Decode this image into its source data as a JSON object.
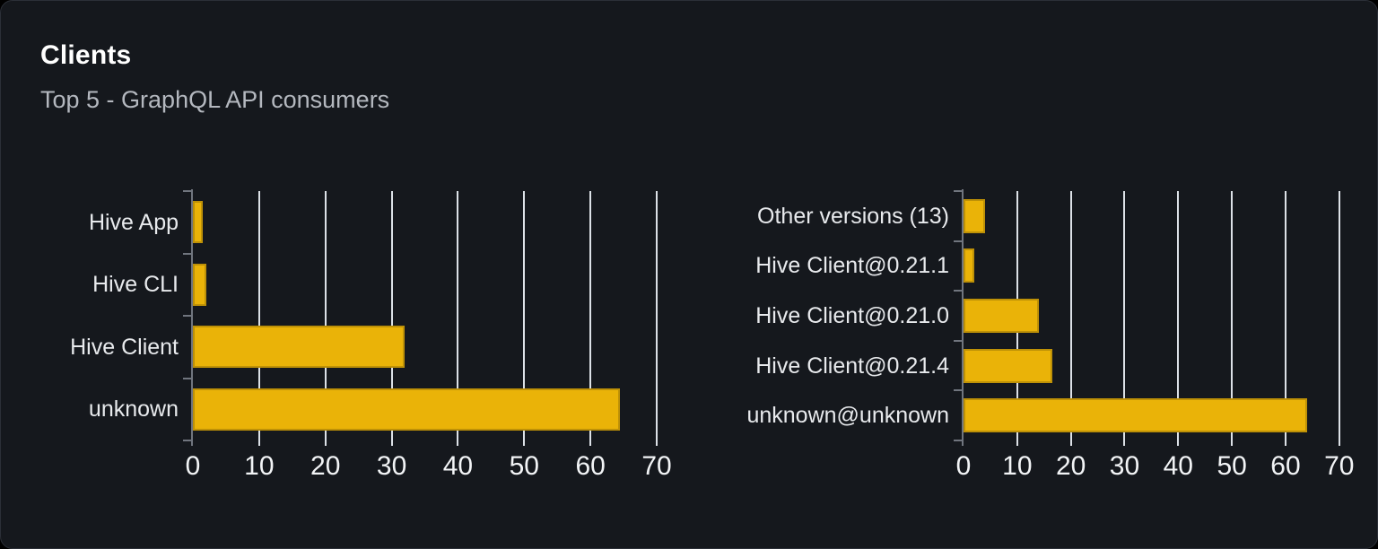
{
  "header": {
    "title": "Clients",
    "subtitle": "Top 5 - GraphQL API consumers"
  },
  "colors": {
    "background": "#000000",
    "card_background": "#15181d",
    "card_border": "#2b2f37",
    "bar": "#eab308",
    "grid_line": "#dce1e7",
    "axis_line": "#70757e",
    "title_text": "#ffffff",
    "subtitle_text": "#b4b8bf",
    "category_label_text": "#e8eaed",
    "tick_label_text": "#f2f4f6"
  },
  "chart_data": [
    {
      "type": "bar",
      "orientation": "horizontal",
      "categories": [
        "Hive App",
        "Hive CLI",
        "Hive Client",
        "unknown"
      ],
      "values": [
        1.5,
        2,
        32,
        64.5
      ],
      "x_ticks": [
        0,
        10,
        20,
        30,
        40,
        50,
        60,
        70
      ],
      "xlim": [
        0,
        72
      ],
      "grid": "vertical-lines",
      "legend": "none",
      "bar_color": "#eab308"
    },
    {
      "type": "bar",
      "orientation": "horizontal",
      "categories": [
        "Other versions (13)",
        "Hive Client@0.21.1",
        "Hive Client@0.21.0",
        "Hive Client@0.21.4",
        "unknown@unknown"
      ],
      "values": [
        4,
        2,
        14,
        16.5,
        64
      ],
      "x_ticks": [
        0,
        10,
        20,
        30,
        40,
        50,
        60,
        70
      ],
      "xlim": [
        0,
        72
      ],
      "grid": "vertical-lines",
      "legend": "none",
      "bar_color": "#eab308"
    }
  ]
}
